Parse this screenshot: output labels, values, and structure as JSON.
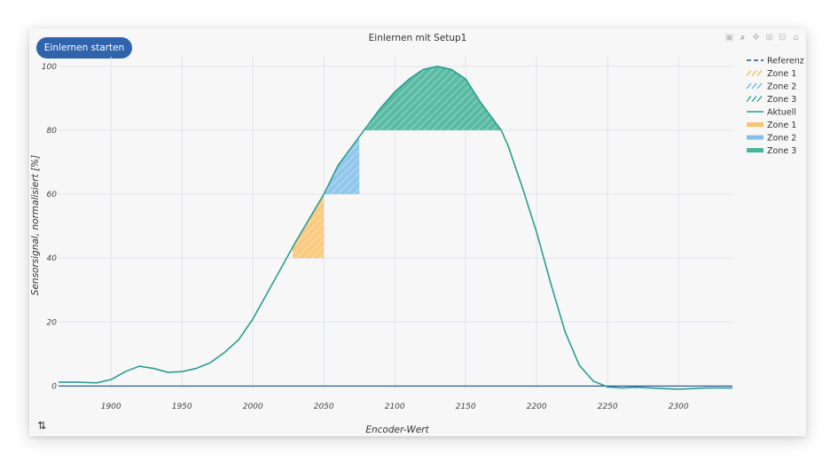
{
  "app": {
    "start_button": "Einlernen starten",
    "title": "Einlernen mit Setup1",
    "xlabel": "Encoder-Wert",
    "ylabel": "Sensorsignal, normalisiert [%]"
  },
  "modebar": [
    {
      "icon": "camera-icon",
      "glyph": "▣",
      "active": false
    },
    {
      "icon": "zoom-icon",
      "glyph": "⌕",
      "active": true
    },
    {
      "icon": "pan-icon",
      "glyph": "✥",
      "active": false
    },
    {
      "icon": "zoom-in-icon",
      "glyph": "⊞",
      "active": false
    },
    {
      "icon": "zoom-out-icon",
      "glyph": "⊟",
      "active": false
    },
    {
      "icon": "home-icon",
      "glyph": "⌂",
      "active": false
    }
  ],
  "chart_data": {
    "type": "line",
    "title": "Einlernen mit Setup1",
    "xlabel": "Encoder-Wert",
    "ylabel": "Sensorsignal, normalisiert [%]",
    "xlim": [
      1863,
      2338
    ],
    "ylim": [
      -1,
      103
    ],
    "x_ticks": [
      1900,
      1950,
      2000,
      2050,
      2100,
      2150,
      2200,
      2250,
      2300
    ],
    "y_ticks": [
      0,
      20,
      40,
      60,
      80,
      100
    ],
    "grid": true,
    "legend_position": "right",
    "legend": [
      {
        "label": "Referenz",
        "style": "dash",
        "color": "#1f4e8c"
      },
      {
        "label": "Zone 1",
        "style": "hatch",
        "color": "#f5b041"
      },
      {
        "label": "Zone 2",
        "style": "hatch",
        "color": "#5dade2"
      },
      {
        "label": "Zone 3",
        "style": "hatch",
        "color": "#16a085"
      },
      {
        "label": "Aktuell",
        "style": "line",
        "color": "#2a9d8f"
      },
      {
        "label": "Zone 1",
        "style": "fill",
        "color": "#f8c471"
      },
      {
        "label": "Zone 2",
        "style": "fill",
        "color": "#85c1e9"
      },
      {
        "label": "Zone 3",
        "style": "fill",
        "color": "#48b49a"
      }
    ],
    "series": [
      {
        "name": "Referenz",
        "color": "#1f4e8c",
        "x": [
          1863,
          2338
        ],
        "y": [
          0,
          0
        ]
      },
      {
        "name": "Aktuell",
        "color": "#2a9d8f",
        "x": [
          1863,
          1875,
          1890,
          1900,
          1910,
          1920,
          1930,
          1940,
          1950,
          1960,
          1970,
          1980,
          1990,
          2000,
          2010,
          2020,
          2030,
          2040,
          2050,
          2060,
          2070,
          2080,
          2090,
          2100,
          2110,
          2120,
          2130,
          2140,
          2150,
          2160,
          2170,
          2175,
          2180,
          2190,
          2200,
          2210,
          2220,
          2230,
          2240,
          2250,
          2260,
          2270,
          2280,
          2290,
          2300,
          2310,
          2320,
          2338
        ],
        "y": [
          1.2,
          1.2,
          1.0,
          2.0,
          4.5,
          6.2,
          5.5,
          4.3,
          4.5,
          5.5,
          7.3,
          10.5,
          14.5,
          21,
          29,
          37,
          45,
          52.5,
          60,
          69,
          75,
          81,
          87,
          92,
          96,
          99,
          100,
          99,
          96,
          89,
          83,
          80,
          75,
          62,
          48,
          32,
          17,
          6.5,
          1.5,
          -0.3,
          -0.6,
          -0.4,
          -0.6,
          -0.8,
          -1.0,
          -0.8,
          -0.6,
          -0.6
        ]
      }
    ],
    "zones": [
      {
        "name": "Zone 1",
        "x": [
          2028,
          2050
        ],
        "y_floor": 40,
        "color": "#f8c471"
      },
      {
        "name": "Zone 2",
        "x": [
          2050,
          2075
        ],
        "y_floor": 60,
        "color": "#85c1e9"
      },
      {
        "name": "Zone 3",
        "x": [
          2075,
          2175
        ],
        "y_floor": 80,
        "color": "#48b49a"
      }
    ]
  }
}
